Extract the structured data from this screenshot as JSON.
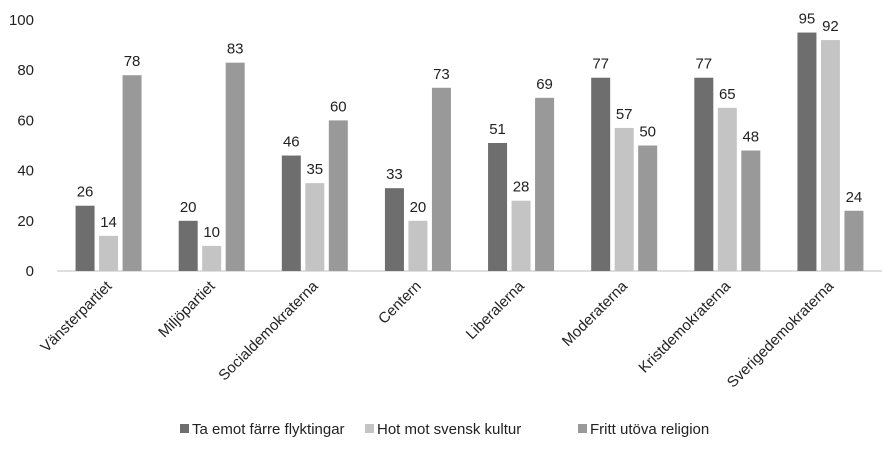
{
  "chart_data": {
    "type": "bar",
    "categories": [
      "Vänsterpartiet",
      "Miljöpartiet",
      "Socialdemokraterna",
      "Centern",
      "Liberalerna",
      "Moderaterna",
      "Kristdemokraterna",
      "Sverigedemokraterna"
    ],
    "series": [
      {
        "name": "Ta emot färre flyktingar",
        "color": "#6e6e6e",
        "values": [
          26,
          20,
          46,
          33,
          51,
          77,
          77,
          95
        ]
      },
      {
        "name": "Hot mot svensk kultur",
        "color": "#c4c4c4",
        "values": [
          14,
          10,
          35,
          20,
          28,
          57,
          65,
          92
        ]
      },
      {
        "name": "Fritt utöva religion",
        "color": "#999999",
        "values": [
          78,
          83,
          60,
          73,
          69,
          50,
          48,
          24
        ]
      }
    ],
    "y_ticks": [
      "0",
      "20",
      "40",
      "60",
      "80",
      "100"
    ],
    "ylim": [
      0,
      100
    ],
    "grid": false,
    "legend_position": "bottom",
    "data_labels": true
  }
}
